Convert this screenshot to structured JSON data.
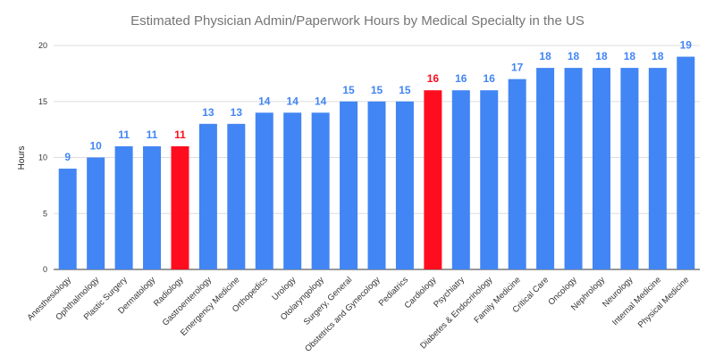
{
  "chart_data": {
    "type": "bar",
    "title": "Estimated Physician Admin/Paperwork Hours by Medical Specialty in the US",
    "xlabel": "",
    "ylabel": "Hours",
    "ylim": [
      0,
      20
    ],
    "yticks": [
      0,
      5,
      10,
      15,
      20
    ],
    "grid": true,
    "categories": [
      "Anesthesiology",
      "Ophthalmology",
      "Plastic Surgery",
      "Dermatology",
      "Radiology",
      "Gastroenterology",
      "Emergency Medicine",
      "Orthopedics",
      "Urology",
      "Otolaryngology",
      "Surgery, General",
      "Obstetrics and Gynecology",
      "Pediatrics",
      "Cardiology",
      "Psychiatry",
      "Diabetes & Endocrinology",
      "Family Medicine",
      "Critical Care",
      "Oncology",
      "Nephrology",
      "Neurology",
      "Internal Medicine",
      "Physical Medicine"
    ],
    "values": [
      9,
      10,
      11,
      11,
      11,
      13,
      13,
      14,
      14,
      14,
      15,
      15,
      15,
      16,
      16,
      16,
      17,
      18,
      18,
      18,
      18,
      18,
      19
    ],
    "highlighted": [
      "Radiology",
      "Cardiology"
    ],
    "colors": {
      "bar": "#4285f4",
      "highlight": "#ff0d1f"
    }
  }
}
